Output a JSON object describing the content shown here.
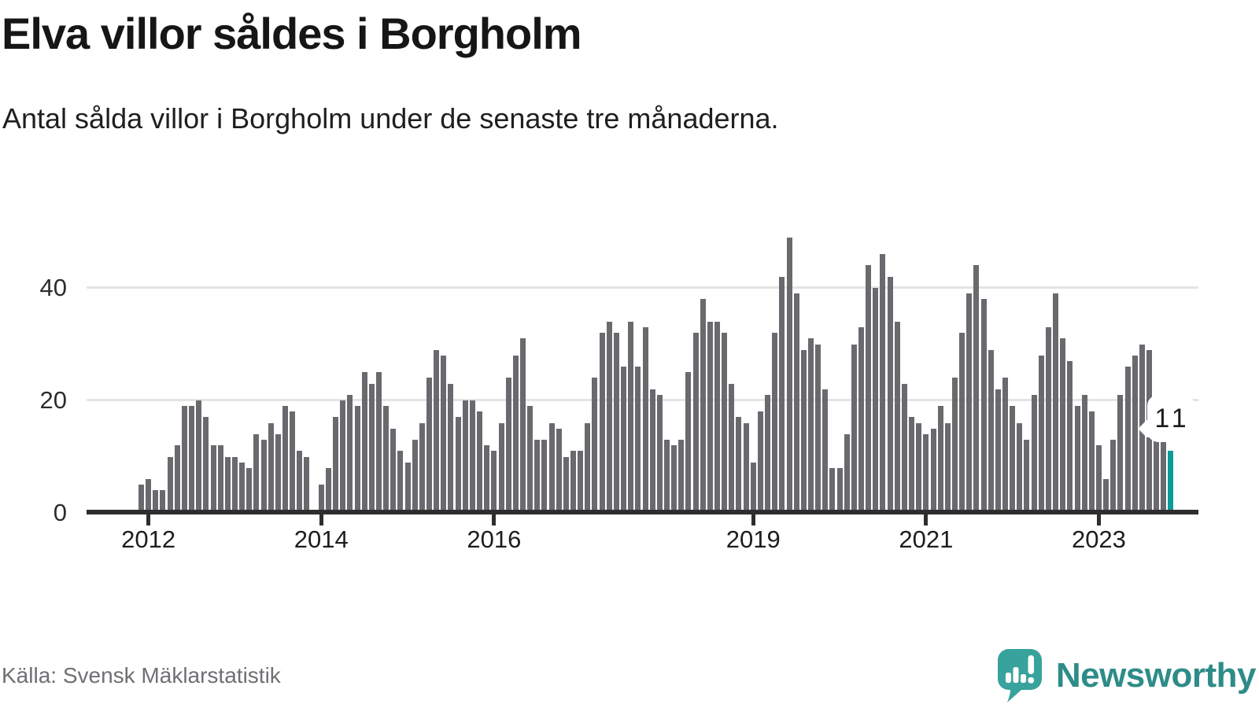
{
  "header": {
    "title": "Elva villor såldes i Borgholm",
    "subtitle": "Antal sålda villor i Borgholm under de senaste tre månaderna."
  },
  "chart_data": {
    "type": "bar",
    "title": "Elva villor såldes i Borgholm",
    "subtitle": "Antal sålda villor i Borgholm under de senaste tre månaderna.",
    "ylabel": "",
    "xlabel": "",
    "ylim": [
      0,
      50
    ],
    "yticks": [
      0,
      20,
      40
    ],
    "grid": "horizontal",
    "bar_color": "#6a6a6e",
    "highlight_color": "#0b9b99",
    "x_tick_labels": [
      "2012",
      "2014",
      "2016",
      "2019",
      "2021",
      "2023"
    ],
    "x_tick_indices": [
      1,
      25,
      49,
      85,
      109,
      133
    ],
    "values": [
      5,
      6,
      4,
      4,
      10,
      12,
      19,
      19,
      20,
      17,
      12,
      12,
      10,
      10,
      9,
      8,
      14,
      13,
      16,
      14,
      19,
      18,
      11,
      10,
      0,
      5,
      8,
      17,
      20,
      21,
      19,
      25,
      23,
      25,
      19,
      15,
      11,
      9,
      13,
      16,
      24,
      29,
      28,
      23,
      17,
      20,
      20,
      18,
      12,
      11,
      16,
      24,
      28,
      31,
      19,
      13,
      13,
      16,
      15,
      10,
      11,
      11,
      16,
      24,
      32,
      34,
      32,
      26,
      34,
      26,
      33,
      22,
      21,
      13,
      12,
      13,
      25,
      32,
      38,
      34,
      34,
      32,
      23,
      17,
      16,
      9,
      18,
      21,
      32,
      42,
      49,
      39,
      29,
      31,
      30,
      22,
      8,
      8,
      14,
      30,
      33,
      44,
      40,
      46,
      42,
      34,
      23,
      17,
      16,
      14,
      15,
      19,
      16,
      24,
      32,
      39,
      44,
      38,
      29,
      22,
      24,
      19,
      16,
      13,
      21,
      28,
      33,
      39,
      31,
      27,
      19,
      21,
      18,
      12,
      6,
      13,
      21,
      26,
      28,
      30,
      29,
      20,
      17,
      11
    ],
    "highlight": {
      "index": 143,
      "value": 11,
      "label": "11"
    },
    "legend": "none"
  },
  "annotation": {
    "last_value_label": "11"
  },
  "footer": {
    "source": "Källa: Svensk Mäklarstatistik",
    "brand": "Newsworthy"
  },
  "colors": {
    "bar": "#6a6a6e",
    "highlight": "#0b9b99",
    "gridline": "#e4e4e4",
    "axis": "#2e2e2e",
    "brand_teal": "#38a29c",
    "brand_text": "#2e8c88"
  }
}
